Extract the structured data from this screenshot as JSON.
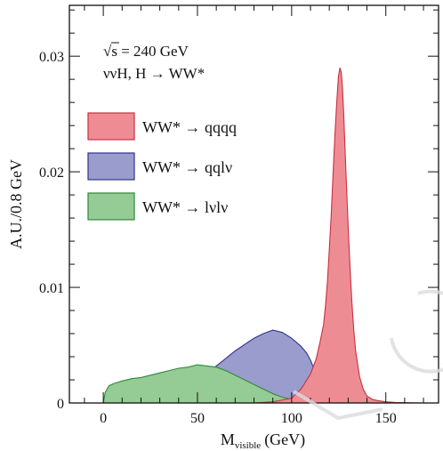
{
  "chart_data": {
    "type": "area",
    "title": "",
    "xlabel": "M",
    "xlabel_sub": "visible",
    "xlabel_unit": "(GeV)",
    "ylabel": "A.U./0.8 GeV",
    "xlim": [
      -18,
      178
    ],
    "ylim": [
      0,
      0.0344
    ],
    "xticks": [
      0,
      50,
      100,
      150
    ],
    "yticks": [
      0,
      0.01,
      0.02,
      0.03
    ],
    "ytick_labels": [
      "0",
      "0.01",
      "0.02",
      "0.03"
    ],
    "annotations": [
      "√s = 240 GeV",
      "ννH, H → WW*"
    ],
    "legend_position": "top-left",
    "colors": {
      "qqqq_fill": "#ee8c94",
      "qqlv_fill": "#9a9ccd",
      "lvlv_fill": "#95cb95",
      "qqqq_line": "#c9303f",
      "qqlv_line": "#34348c",
      "lvlv_line": "#2e8a3a",
      "axis": "#111111"
    },
    "series": [
      {
        "name": "WW* → qqqq",
        "x": [
          0,
          20,
          40,
          60,
          80,
          90,
          100,
          105,
          110,
          113,
          115,
          117,
          118,
          119,
          120,
          121,
          122,
          123,
          124,
          124.8,
          125.6,
          126.4,
          127,
          127.6,
          128.2,
          129,
          130,
          131,
          132,
          133,
          134,
          136,
          138,
          140,
          143,
          146,
          150,
          155,
          160,
          170,
          178
        ],
        "y": [
          0,
          0,
          0,
          0,
          0,
          0.0001,
          0.0004,
          0.0012,
          0.0025,
          0.0038,
          0.0052,
          0.0068,
          0.0085,
          0.0105,
          0.0133,
          0.0162,
          0.0198,
          0.0232,
          0.0262,
          0.0282,
          0.029,
          0.0286,
          0.0272,
          0.0252,
          0.0225,
          0.0192,
          0.0152,
          0.0117,
          0.0087,
          0.0063,
          0.0045,
          0.0023,
          0.0012,
          0.0006,
          0.0003,
          0.0002,
          0.0001,
          5e-05,
          2e-05,
          0,
          0
        ]
      },
      {
        "name": "WW* → qqlν",
        "x": [
          0,
          5,
          10,
          20,
          30,
          40,
          50,
          60,
          70,
          80,
          85,
          90,
          95,
          100,
          105,
          108,
          110,
          112,
          114,
          116,
          118,
          120
        ],
        "y": [
          0,
          0,
          0,
          0,
          0.0001,
          0.0008,
          0.0019,
          0.0032,
          0.0045,
          0.0056,
          0.006,
          0.0063,
          0.0061,
          0.0056,
          0.0049,
          0.0043,
          0.0037,
          0.0029,
          0.002,
          0.0012,
          0.0005,
          0
        ]
      },
      {
        "name": "WW* → lνlν",
        "x": [
          0,
          1,
          3,
          6,
          10,
          15,
          20,
          25,
          30,
          35,
          40,
          45,
          50,
          55,
          60,
          65,
          70,
          75,
          80,
          85,
          90,
          95,
          100,
          105,
          110,
          115,
          120
        ],
        "y": [
          0,
          0.0009,
          0.0015,
          0.0017,
          0.0019,
          0.0021,
          0.0022,
          0.0024,
          0.0026,
          0.0028,
          0.003,
          0.0031,
          0.0033,
          0.0032,
          0.0031,
          0.0028,
          0.0024,
          0.002,
          0.0016,
          0.0012,
          0.0008,
          0.0005,
          0.0003,
          0.0001,
          5e-05,
          2e-05,
          0
        ]
      }
    ]
  }
}
